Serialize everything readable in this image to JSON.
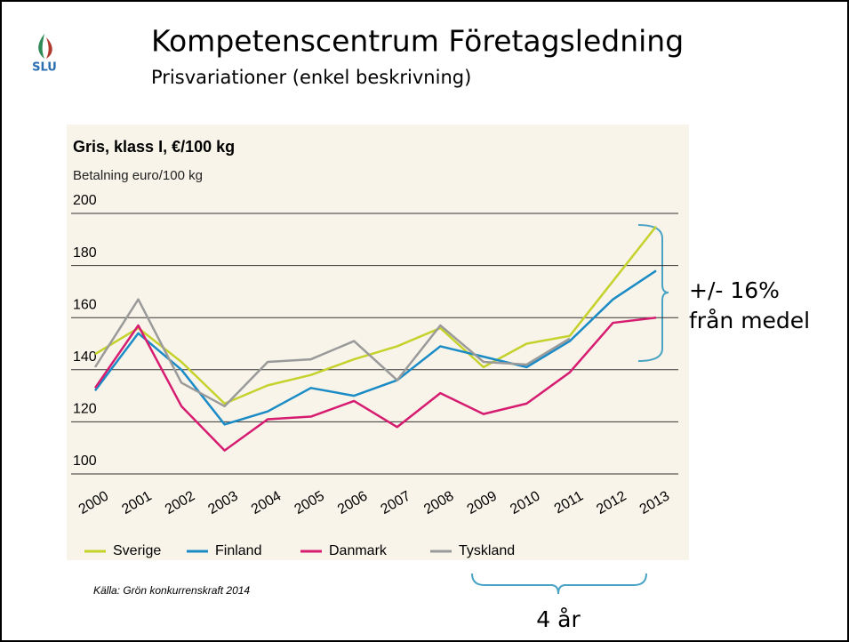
{
  "header": {
    "logo": "SLU",
    "title": "Kompetenscentrum Företagsledning",
    "subtitle": "Prisvariationer (enkel beskrivning)"
  },
  "chart_data": {
    "type": "line",
    "title": "Gris, klass I, €/100 kg",
    "y_label": "Betalning euro/100 kg",
    "categories": [
      "2000",
      "2001",
      "2002",
      "2003",
      "2004",
      "2005",
      "2006",
      "2007",
      "2008",
      "2009",
      "2010",
      "2011",
      "2012",
      "2013"
    ],
    "ylim": [
      100,
      200
    ],
    "yticks": [
      100,
      120,
      140,
      160,
      180,
      200
    ],
    "grid": true,
    "series": [
      {
        "name": "Sverige",
        "color": "#c5d22c",
        "values": [
          146,
          156,
          143,
          127,
          134,
          138,
          144,
          149,
          156,
          141,
          150,
          153,
          174,
          195
        ]
      },
      {
        "name": "Finland",
        "color": "#1b8bc6",
        "values": [
          132,
          154,
          140,
          119,
          124,
          133,
          130,
          136,
          149,
          145,
          141,
          151,
          167,
          178
        ]
      },
      {
        "name": "Danmark",
        "color": "#d61c70",
        "values": [
          133,
          157,
          126,
          109,
          121,
          122,
          128,
          118,
          131,
          123,
          127,
          139,
          158,
          160
        ]
      },
      {
        "name": "Tyskland",
        "color": "#9a9a9a",
        "values": [
          141,
          167,
          135,
          126,
          143,
          144,
          151,
          136,
          157,
          143,
          142,
          152,
          null,
          null
        ]
      }
    ],
    "source": "Källa: Grön konkurrenskraft 2014"
  },
  "annotations": {
    "range_line1": "+/- 16%",
    "range_line2": "från medel",
    "period": "4 år"
  }
}
